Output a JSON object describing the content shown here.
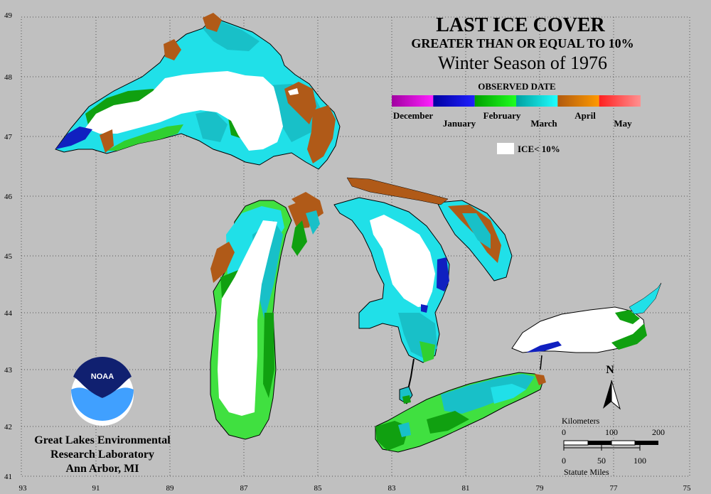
{
  "title": {
    "line1": "LAST ICE COVER",
    "line2": "GREATER THAN OR EQUAL TO 10%",
    "line3": "Winter Season of 1976"
  },
  "legend": {
    "heading": "OBSERVED DATE",
    "months": [
      {
        "label": "December",
        "colors": [
          "#a000a0",
          "#ff20ff"
        ]
      },
      {
        "label": "January",
        "colors": [
          "#0000a0",
          "#2020ff"
        ]
      },
      {
        "label": "February",
        "colors": [
          "#00a000",
          "#20ff20"
        ]
      },
      {
        "label": "March",
        "colors": [
          "#00a0a0",
          "#20ffff"
        ]
      },
      {
        "label": "April",
        "colors": [
          "#b05a10",
          "#ff9a00"
        ]
      },
      {
        "label": "May",
        "colors": [
          "#ff2020",
          "#ff9090"
        ]
      }
    ],
    "ice_label": "ICE< 10%"
  },
  "axes": {
    "lat_labels": [
      "49",
      "48",
      "47",
      "46",
      "45",
      "44",
      "43",
      "42",
      "41"
    ],
    "lon_labels": [
      "93",
      "91",
      "89",
      "87",
      "85",
      "83",
      "81",
      "79",
      "77",
      "75"
    ]
  },
  "north_arrow": {
    "label": "N"
  },
  "scale_bar": {
    "km_label": "Kilometers",
    "km_ticks": [
      "0",
      "100",
      "200"
    ],
    "mi_ticks": [
      "0",
      "50",
      "100"
    ],
    "mi_label": "Statute Miles"
  },
  "logo": {
    "text": "NOAA"
  },
  "credit": {
    "line1": "Great Lakes Environmental",
    "line2": "Research Laboratory",
    "line3": "Ann Arbor, MI"
  },
  "colors": {
    "background": "#c0c0c0",
    "ice_low": "#ffffff",
    "march_light": "#20e0e8",
    "march_dark": "#10b0b0",
    "february_dark": "#10a010",
    "february_light": "#40e040",
    "april": "#b05a18",
    "january": "#1020c0"
  }
}
